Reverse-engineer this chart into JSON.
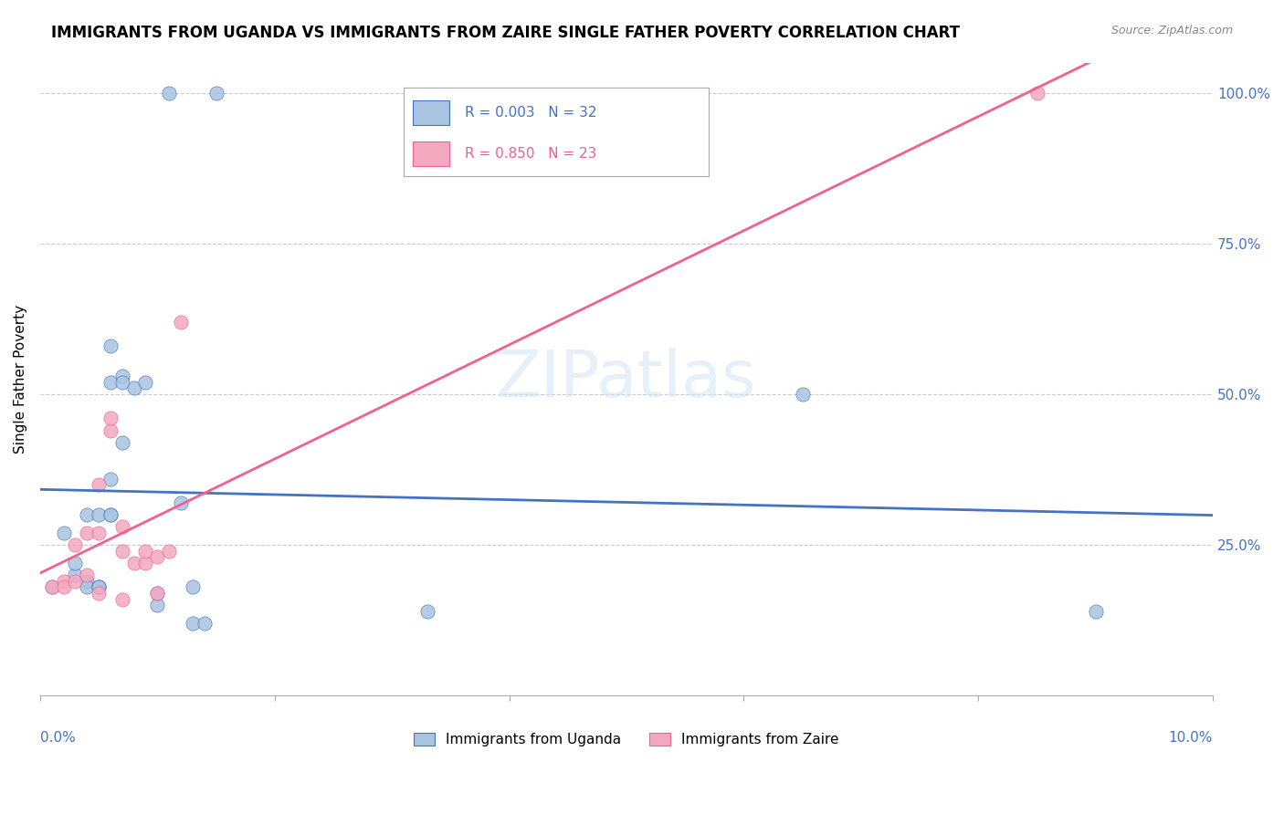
{
  "title": "IMMIGRANTS FROM UGANDA VS IMMIGRANTS FROM ZAIRE SINGLE FATHER POVERTY CORRELATION CHART",
  "source": "Source: ZipAtlas.com",
  "ylabel": "Single Father Poverty",
  "right_yticks": [
    "100.0%",
    "75.0%",
    "50.0%",
    "25.0%"
  ],
  "right_ytick_vals": [
    1.0,
    0.75,
    0.5,
    0.25
  ],
  "xlim": [
    0.0,
    0.1
  ],
  "ylim": [
    0.0,
    1.05
  ],
  "uganda_color": "#a8c4e0",
  "zaire_color": "#f4a8c0",
  "uganda_line_color": "#4472c4",
  "zaire_line_color": "#f06090",
  "watermark": "ZIPatlas",
  "uganda_scatter_x": [
    0.001,
    0.002,
    0.003,
    0.003,
    0.004,
    0.004,
    0.004,
    0.005,
    0.005,
    0.005,
    0.005,
    0.006,
    0.006,
    0.006,
    0.006,
    0.006,
    0.007,
    0.007,
    0.007,
    0.008,
    0.009,
    0.01,
    0.01,
    0.011,
    0.012,
    0.013,
    0.013,
    0.014,
    0.015,
    0.033,
    0.065,
    0.09
  ],
  "uganda_scatter_y": [
    0.18,
    0.27,
    0.2,
    0.22,
    0.19,
    0.18,
    0.3,
    0.18,
    0.18,
    0.3,
    0.18,
    0.58,
    0.52,
    0.36,
    0.3,
    0.3,
    0.42,
    0.53,
    0.52,
    0.51,
    0.52,
    0.15,
    0.17,
    1.0,
    0.32,
    0.18,
    0.12,
    0.12,
    1.0,
    0.14,
    0.5,
    0.14
  ],
  "zaire_scatter_x": [
    0.001,
    0.002,
    0.002,
    0.003,
    0.003,
    0.004,
    0.004,
    0.005,
    0.005,
    0.005,
    0.006,
    0.006,
    0.007,
    0.007,
    0.007,
    0.008,
    0.009,
    0.009,
    0.01,
    0.01,
    0.011,
    0.012,
    0.085
  ],
  "zaire_scatter_y": [
    0.18,
    0.19,
    0.18,
    0.19,
    0.25,
    0.2,
    0.27,
    0.17,
    0.27,
    0.35,
    0.44,
    0.46,
    0.28,
    0.24,
    0.16,
    0.22,
    0.22,
    0.24,
    0.23,
    0.17,
    0.24,
    0.62,
    1.0
  ],
  "legend_r_uganda": "R = 0.003",
  "legend_n_uganda": "N = 32",
  "legend_r_zaire": "R = 0.850",
  "legend_n_zaire": "N = 23",
  "legend_label_uganda": "Immigrants from Uganda",
  "legend_label_zaire": "Immigrants from Zaire"
}
